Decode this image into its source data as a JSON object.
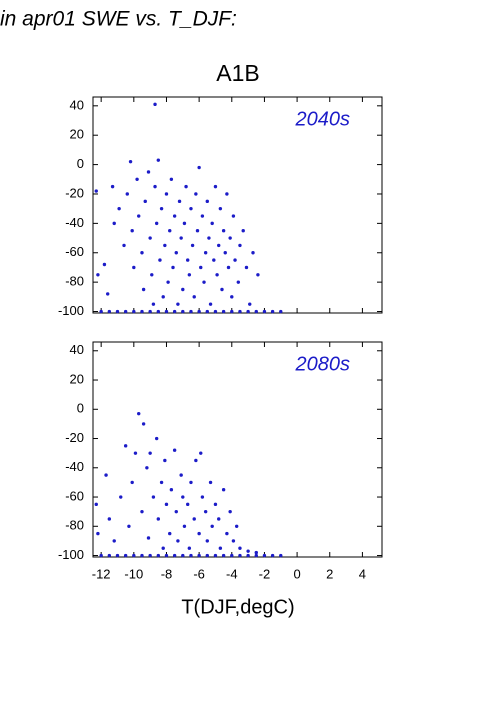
{
  "header": "in apr01 SWE vs. T_DJF:",
  "chart_data": [
    {
      "type": "scatter",
      "title": "A1B",
      "label": "2040s",
      "xlim": [
        -12.5,
        5.2
      ],
      "ylim": [
        -101,
        46
      ],
      "yticks": [
        -100,
        -80,
        -60,
        -40,
        -20,
        0,
        20,
        40
      ],
      "series": [
        {
          "color": "#1c1cc8",
          "x": [
            -8.7,
            -12.3,
            -12.2,
            -11.8,
            -11.6,
            -11.3,
            -11.2,
            -10.9,
            -10.6,
            -10.4,
            -10.2,
            -10.1,
            -10.0,
            -9.8,
            -9.7,
            -9.5,
            -9.4,
            -9.3,
            -9.1,
            -9.0,
            -8.9,
            -8.8,
            -8.7,
            -8.6,
            -8.5,
            -8.4,
            -8.3,
            -8.2,
            -8.1,
            -8.0,
            -7.9,
            -7.8,
            -7.7,
            -7.6,
            -7.5,
            -7.4,
            -7.3,
            -7.2,
            -7.1,
            -7.0,
            -6.9,
            -6.8,
            -6.7,
            -6.6,
            -6.5,
            -6.4,
            -6.3,
            -6.2,
            -6.1,
            -6.0,
            -5.9,
            -5.8,
            -5.7,
            -5.6,
            -5.5,
            -5.4,
            -5.3,
            -5.2,
            -5.1,
            -5.0,
            -4.9,
            -4.8,
            -4.7,
            -4.6,
            -4.5,
            -4.4,
            -4.3,
            -4.2,
            -4.1,
            -4.0,
            -3.9,
            -3.8,
            -3.6,
            -3.5,
            -3.3,
            -3.1,
            -2.9,
            -2.7,
            -2.4,
            -12,
            -11.5,
            -11,
            -10.5,
            -10,
            -9.5,
            -9,
            -8.5,
            -8,
            -7.5,
            -7,
            -6.5,
            -6,
            -5.5,
            -5,
            -4.5,
            -4,
            -3.5,
            -3,
            -2.5,
            -2,
            -1.5,
            -1
          ],
          "y": [
            41,
            -18,
            -75,
            -68,
            -88,
            -15,
            -40,
            -30,
            -55,
            -20,
            2,
            -45,
            -70,
            -10,
            -35,
            -60,
            -85,
            -25,
            -5,
            -50,
            -75,
            -95,
            -15,
            -40,
            3,
            -65,
            -30,
            -90,
            -55,
            -20,
            -80,
            -45,
            -10,
            -70,
            -35,
            -60,
            -95,
            -25,
            -50,
            -85,
            -40,
            -15,
            -65,
            -75,
            -30,
            -55,
            -90,
            -20,
            -45,
            -2,
            -70,
            -35,
            -80,
            -60,
            -25,
            -50,
            -95,
            -40,
            -65,
            -15,
            -75,
            -55,
            -30,
            -85,
            -45,
            -60,
            -20,
            -70,
            -50,
            -90,
            -35,
            -65,
            -80,
            -55,
            -45,
            -70,
            -95,
            -60,
            -75,
            -100,
            -100,
            -100,
            -100,
            -100,
            -100,
            -100,
            -100,
            -100,
            -100,
            -100,
            -100,
            -100,
            -100,
            -100,
            -100,
            -100,
            -100,
            -100,
            -100,
            -100,
            -100,
            -100
          ]
        }
      ]
    },
    {
      "type": "scatter",
      "label": "2080s",
      "xlabel": "T(DJF,degC)",
      "xlim": [
        -12.5,
        5.2
      ],
      "ylim": [
        -101,
        46
      ],
      "yticks": [
        -100,
        -80,
        -60,
        -40,
        -20,
        0,
        20,
        40
      ],
      "xticks": [
        -12,
        -10,
        -8,
        -6,
        -4,
        -2,
        0,
        2,
        4
      ],
      "series": [
        {
          "color": "#1c1cc8",
          "x": [
            -12.3,
            -12.2,
            -11.7,
            -11.5,
            -11.2,
            -10.8,
            -10.5,
            -10.3,
            -10.1,
            -9.9,
            -9.7,
            -9.5,
            -9.4,
            -9.2,
            -9.1,
            -9.0,
            -8.8,
            -8.6,
            -8.5,
            -8.3,
            -8.2,
            -8.1,
            -8.0,
            -7.8,
            -7.7,
            -7.5,
            -7.4,
            -7.3,
            -7.1,
            -7.0,
            -6.9,
            -6.7,
            -6.6,
            -6.5,
            -6.3,
            -6.2,
            -6.0,
            -5.9,
            -5.8,
            -5.6,
            -5.5,
            -5.3,
            -5.2,
            -5.0,
            -4.8,
            -4.7,
            -4.5,
            -4.3,
            -4.1,
            -3.9,
            -3.7,
            -3.5,
            -3.0,
            -2.5,
            -12,
            -11.5,
            -11,
            -10.5,
            -10,
            -9.5,
            -9,
            -8.5,
            -8,
            -7.5,
            -7,
            -6.5,
            -6,
            -5.5,
            -5,
            -4.5,
            -4,
            -3.5,
            -3,
            -2.5,
            -2,
            -1.5,
            -1
          ],
          "y": [
            -65,
            -85,
            -45,
            -75,
            -90,
            -60,
            -25,
            -80,
            -50,
            -30,
            -3,
            -70,
            -10,
            -40,
            -88,
            -30,
            -60,
            -20,
            -75,
            -50,
            -95,
            -35,
            -65,
            -85,
            -55,
            -28,
            -70,
            -90,
            -45,
            -60,
            -80,
            -65,
            -95,
            -50,
            -75,
            -35,
            -85,
            -30,
            -60,
            -70,
            -90,
            -50,
            -80,
            -65,
            -75,
            -95,
            -55,
            -85,
            -70,
            -90,
            -80,
            -95,
            -97,
            -98,
            -100,
            -100,
            -100,
            -100,
            -100,
            -100,
            -100,
            -100,
            -100,
            -100,
            -100,
            -100,
            -100,
            -100,
            -100,
            -100,
            -100,
            -100,
            -100,
            -100,
            -100,
            -100,
            -100
          ]
        }
      ]
    }
  ]
}
